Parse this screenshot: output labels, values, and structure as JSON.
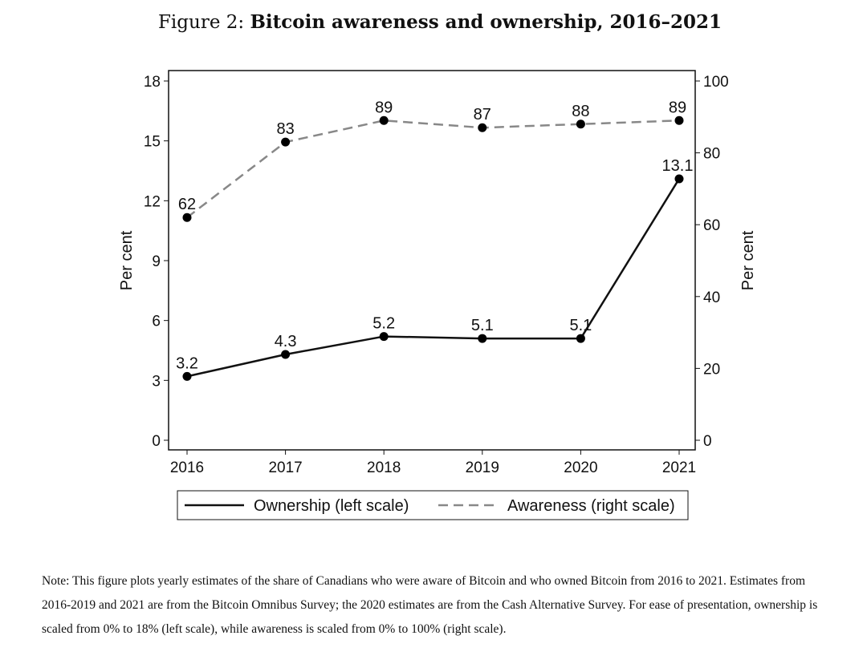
{
  "figure": {
    "prefix": "Figure 2:",
    "title": "Bitcoin awareness and ownership, 2016–2021"
  },
  "chart_data": {
    "type": "line",
    "title": "Bitcoin awareness and ownership, 2016–2021",
    "x": [
      2016,
      2017,
      2018,
      2019,
      2020,
      2021
    ],
    "x_tick_labels": [
      "2016",
      "2017",
      "2018",
      "2019",
      "2020",
      "2021"
    ],
    "ylabel_left": "Per cent",
    "ylabel_right": "Per cent",
    "ylim_left": [
      0,
      18
    ],
    "ylim_right": [
      0,
      100
    ],
    "yticks_left": [
      0,
      3,
      6,
      9,
      12,
      15,
      18
    ],
    "yticks_right": [
      0,
      20,
      40,
      60,
      80,
      100
    ],
    "grid": false,
    "legend_position": "bottom",
    "series": [
      {
        "name": "Ownership (left scale)",
        "axis": "left",
        "style": "solid",
        "color": "#111111",
        "values": [
          3.2,
          4.3,
          5.2,
          5.1,
          5.1,
          13.1
        ],
        "labels": [
          "3.2",
          "4.3",
          "5.2",
          "5.1",
          "5.1",
          "13.1"
        ]
      },
      {
        "name": "Awareness (right scale)",
        "axis": "right",
        "style": "dashed",
        "color": "#888888",
        "values": [
          62,
          83,
          89,
          87,
          88,
          89
        ],
        "labels": [
          "62",
          "83",
          "89",
          "87",
          "88",
          "89"
        ]
      }
    ]
  },
  "note": "Note: This figure plots yearly estimates of the share of Canadians who were aware of Bitcoin and who owned Bitcoin from 2016 to 2021. Estimates from 2016-2019 and 2021 are from the Bitcoin Omnibus Survey; the 2020 estimates are from the Cash Alternative Survey. For ease of presentation, ownership is scaled from 0% to 18% (left scale), while awareness is scaled from 0% to 100% (right scale)."
}
